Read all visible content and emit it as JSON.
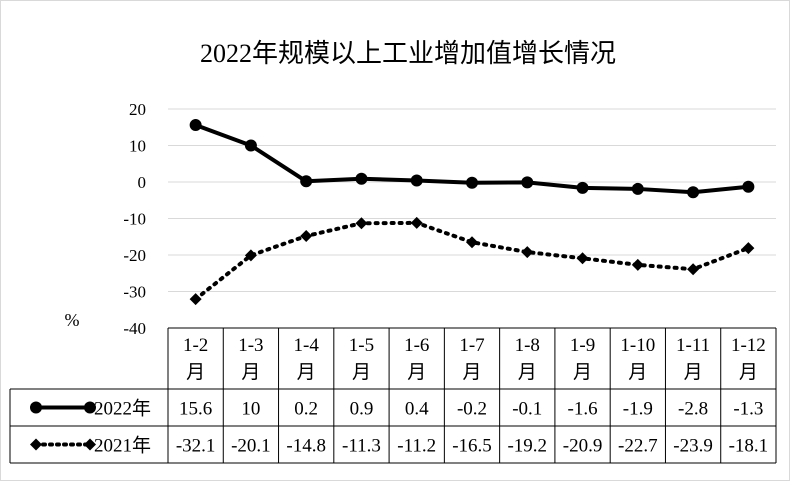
{
  "chart_data": {
    "type": "line",
    "title": "2022年规模以上工业增加值增长情况",
    "ylabel": "%",
    "ylim": [
      -40,
      20
    ],
    "yticks": [
      "20",
      "10",
      "0",
      "-10",
      "-20",
      "-30",
      "-40"
    ],
    "grid": true,
    "categories": [
      [
        "1-2",
        "月"
      ],
      [
        "1-3",
        "月"
      ],
      [
        "1-4",
        "月"
      ],
      [
        "1-5",
        "月"
      ],
      [
        "1-6",
        "月"
      ],
      [
        "1-7",
        "月"
      ],
      [
        "1-8",
        "月"
      ],
      [
        "1-9",
        "月"
      ],
      [
        "1-10",
        "月"
      ],
      [
        "1-11",
        "月"
      ],
      [
        "1-12",
        "月"
      ]
    ],
    "series": [
      {
        "name": "2022年",
        "style": "solid",
        "marker": "circle",
        "values": [
          15.6,
          10,
          0.2,
          0.9,
          0.4,
          -0.2,
          -0.1,
          -1.6,
          -1.9,
          -2.8,
          -1.3
        ],
        "labels": [
          "15.6",
          "10",
          "0.2",
          "0.9",
          "0.4",
          "-0.2",
          "-0.1",
          "-1.6",
          "-1.9",
          "-2.8",
          "-1.3"
        ]
      },
      {
        "name": "2021年",
        "style": "dotted",
        "marker": "diamond",
        "values": [
          -32.1,
          -20.1,
          -14.8,
          -11.3,
          -11.2,
          -16.5,
          -19.2,
          -20.9,
          -22.7,
          -23.9,
          -18.1
        ],
        "labels": [
          "-32.1",
          "-20.1",
          "-14.8",
          "-11.3",
          "-11.2",
          "-16.5",
          "-19.2",
          "-20.9",
          "-22.7",
          "-23.9",
          "-18.1"
        ]
      }
    ],
    "colors": {
      "line": "#000000",
      "grid": "#d9d9d9"
    }
  }
}
